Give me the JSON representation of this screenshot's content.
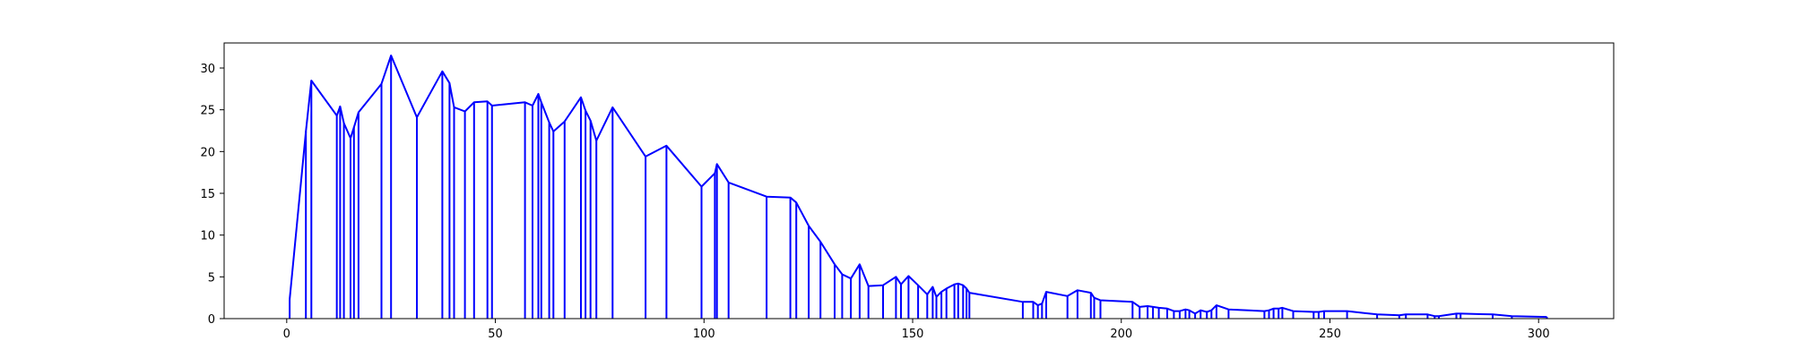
{
  "chart_data": {
    "type": "line",
    "title": "",
    "xlabel": "",
    "ylabel": "",
    "xlim": [
      -15,
      318
    ],
    "ylim": [
      0,
      33
    ],
    "xticks": [
      0,
      50,
      100,
      150,
      200,
      250,
      300
    ],
    "yticks": [
      0,
      5,
      10,
      15,
      20,
      25,
      30
    ],
    "grid": false,
    "line_color": "#0000ff",
    "series": [
      {
        "drop_lines": true,
        "points": [
          [
            0.7,
            2.3
          ],
          [
            4.6,
            22.4
          ],
          [
            5.9,
            28.5
          ],
          [
            12,
            24.3
          ],
          [
            12.8,
            25.4
          ],
          [
            13.7,
            23.4
          ],
          [
            15.3,
            21.6
          ],
          [
            16.1,
            22.9
          ],
          [
            17.2,
            24.7
          ],
          [
            22.7,
            28.1
          ],
          [
            25,
            31.5
          ],
          [
            31.2,
            24.1
          ],
          [
            37.3,
            29.6
          ],
          [
            39,
            28.2
          ],
          [
            40.1,
            25.3
          ],
          [
            42.7,
            24.8
          ],
          [
            44.9,
            25.9
          ],
          [
            48.1,
            26.0
          ],
          [
            49.2,
            25.5
          ],
          [
            57.1,
            25.9
          ],
          [
            58.9,
            25.5
          ],
          [
            60.3,
            26.9
          ],
          [
            61,
            25.9
          ],
          [
            62.9,
            23.5
          ],
          [
            63.9,
            22.4
          ],
          [
            66.6,
            23.6
          ],
          [
            70.5,
            26.5
          ],
          [
            71.6,
            24.9
          ],
          [
            72.8,
            23.7
          ],
          [
            74.2,
            21.3
          ],
          [
            78.1,
            25.3
          ],
          [
            86,
            19.4
          ],
          [
            91,
            20.7
          ],
          [
            99.4,
            15.8
          ],
          [
            102.6,
            17.4
          ],
          [
            103.1,
            18.5
          ],
          [
            105.9,
            16.3
          ],
          [
            115,
            14.6
          ],
          [
            120.7,
            14.5
          ],
          [
            122.1,
            13.9
          ],
          [
            125.1,
            11.1
          ],
          [
            127.9,
            9.2
          ],
          [
            131.3,
            6.5
          ],
          [
            133.1,
            5.3
          ],
          [
            135.2,
            4.8
          ],
          [
            137.3,
            6.5
          ],
          [
            139.4,
            3.9
          ],
          [
            142.9,
            4.0
          ],
          [
            146,
            5.0
          ],
          [
            147.2,
            4.1
          ],
          [
            149,
            5.1
          ],
          [
            151.3,
            4.0
          ],
          [
            153.5,
            2.9
          ],
          [
            154.8,
            3.8
          ],
          [
            155.7,
            2.6
          ],
          [
            156.9,
            3.2
          ],
          [
            158.1,
            3.6
          ],
          [
            160,
            4.1
          ],
          [
            160.9,
            4.2
          ],
          [
            162.1,
            4.0
          ],
          [
            162.9,
            3.6
          ],
          [
            163.6,
            3.1
          ],
          [
            176.4,
            2.0
          ],
          [
            178.9,
            2.0
          ],
          [
            180,
            1.6
          ],
          [
            181,
            1.8
          ],
          [
            182,
            3.2
          ],
          [
            187.1,
            2.7
          ],
          [
            189.5,
            3.4
          ],
          [
            192.7,
            3.1
          ],
          [
            193.5,
            2.5
          ],
          [
            195,
            2.2
          ],
          [
            202.7,
            2.0
          ],
          [
            204.4,
            1.4
          ],
          [
            206.3,
            1.5
          ],
          [
            207.6,
            1.4
          ],
          [
            209,
            1.3
          ],
          [
            211,
            1.2
          ],
          [
            212.6,
            0.9
          ],
          [
            214,
            0.9
          ],
          [
            215.4,
            1.1
          ],
          [
            216.3,
            1.0
          ],
          [
            217.7,
            0.6
          ],
          [
            219,
            1.0
          ],
          [
            220.5,
            0.8
          ],
          [
            221.6,
            1.0
          ],
          [
            222.8,
            1.6
          ],
          [
            225.7,
            1.1
          ],
          [
            234.3,
            0.9
          ],
          [
            235.4,
            1.0
          ],
          [
            236.5,
            1.2
          ],
          [
            237.7,
            1.2
          ],
          [
            238.6,
            1.3
          ],
          [
            241.2,
            0.9
          ],
          [
            246.1,
            0.8
          ],
          [
            247.3,
            0.8
          ],
          [
            248.6,
            0.9
          ],
          [
            254.1,
            0.9
          ],
          [
            261.3,
            0.5
          ],
          [
            266.6,
            0.4
          ],
          [
            268.2,
            0.5
          ],
          [
            273.4,
            0.5
          ],
          [
            275.1,
            0.3
          ],
          [
            276.1,
            0.3
          ],
          [
            280.3,
            0.6
          ],
          [
            281.3,
            0.6
          ],
          [
            289,
            0.5
          ],
          [
            293.6,
            0.3
          ],
          [
            302,
            0.2
          ]
        ]
      }
    ]
  }
}
